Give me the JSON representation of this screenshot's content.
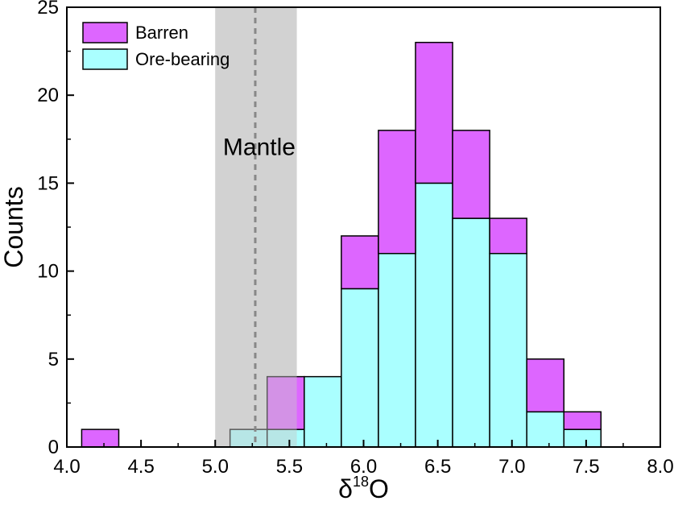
{
  "chart_data": {
    "type": "bar",
    "stacked": true,
    "xlabel_base": "δ",
    "xlabel_sup": "18",
    "xlabel_tail": "O",
    "ylabel": "Counts",
    "xlim": [
      4.0,
      8.0
    ],
    "ylim": [
      0,
      25
    ],
    "xticks": [
      "4.0",
      "4.5",
      "5.0",
      "5.5",
      "6.0",
      "6.5",
      "7.0",
      "7.5",
      "8.0"
    ],
    "yticks": [
      "0",
      "5",
      "10",
      "15",
      "20",
      "25"
    ],
    "bin_edges": [
      4.1,
      4.35,
      4.6,
      4.85,
      5.1,
      5.35,
      5.6,
      5.85,
      6.1,
      6.35,
      6.6,
      6.85,
      7.1,
      7.35,
      7.6
    ],
    "series": [
      {
        "name": "Ore-bearing",
        "color": "#aaffff",
        "values": [
          0,
          0,
          0,
          0,
          1,
          1,
          4,
          9,
          11,
          15,
          13,
          11,
          2,
          1
        ]
      },
      {
        "name": "Barren",
        "color": "#dd66ff",
        "values": [
          1,
          0,
          0,
          0,
          0,
          3,
          0,
          3,
          7,
          8,
          5,
          2,
          3,
          1
        ]
      }
    ],
    "legend_position": "top-left",
    "grid": false,
    "mantle_band": {
      "label": "Mantle",
      "range": [
        5.0,
        5.55
      ],
      "center": 5.27,
      "color": "#c8c8c8"
    }
  }
}
